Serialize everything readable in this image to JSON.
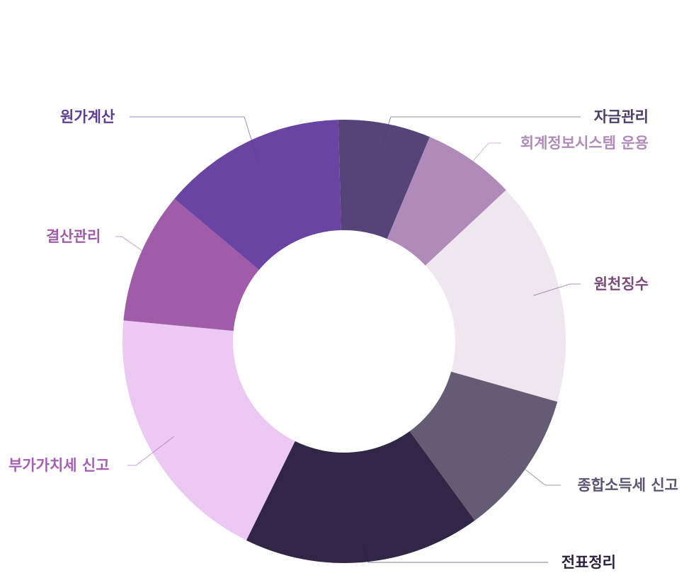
{
  "chart_data": {
    "type": "pie",
    "title": "",
    "donut": true,
    "legend": "none",
    "slices": [
      {
        "label": "자금관리",
        "value": 7,
        "color": "#564478",
        "label_color": "#4a3d66"
      },
      {
        "label": "회계정보시스템 운용",
        "value": 7,
        "color": "#b08ab8",
        "label_color": "#b08ab8"
      },
      {
        "label": "원천징수",
        "value": 17,
        "color": "#f0e6f0",
        "label_color": "#7a4a7a"
      },
      {
        "label": "종합소득세 신고",
        "value": 11,
        "color": "#655b74",
        "label_color": "#5c5470"
      },
      {
        "label": "전표정리",
        "value": 18,
        "color": "#312645",
        "label_color": "#2b2240"
      },
      {
        "label": "부가가치세 신고",
        "value": 20,
        "color": "#ebc9f2",
        "label_color": "#a65eb5"
      },
      {
        "label": "결산관리",
        "value": 10,
        "color": "#a05ca9",
        "label_color": "#a05ca9"
      },
      {
        "label": "원가계산",
        "value": 14,
        "color": "#6944a2",
        "label_color": "#5e3d94"
      }
    ]
  }
}
